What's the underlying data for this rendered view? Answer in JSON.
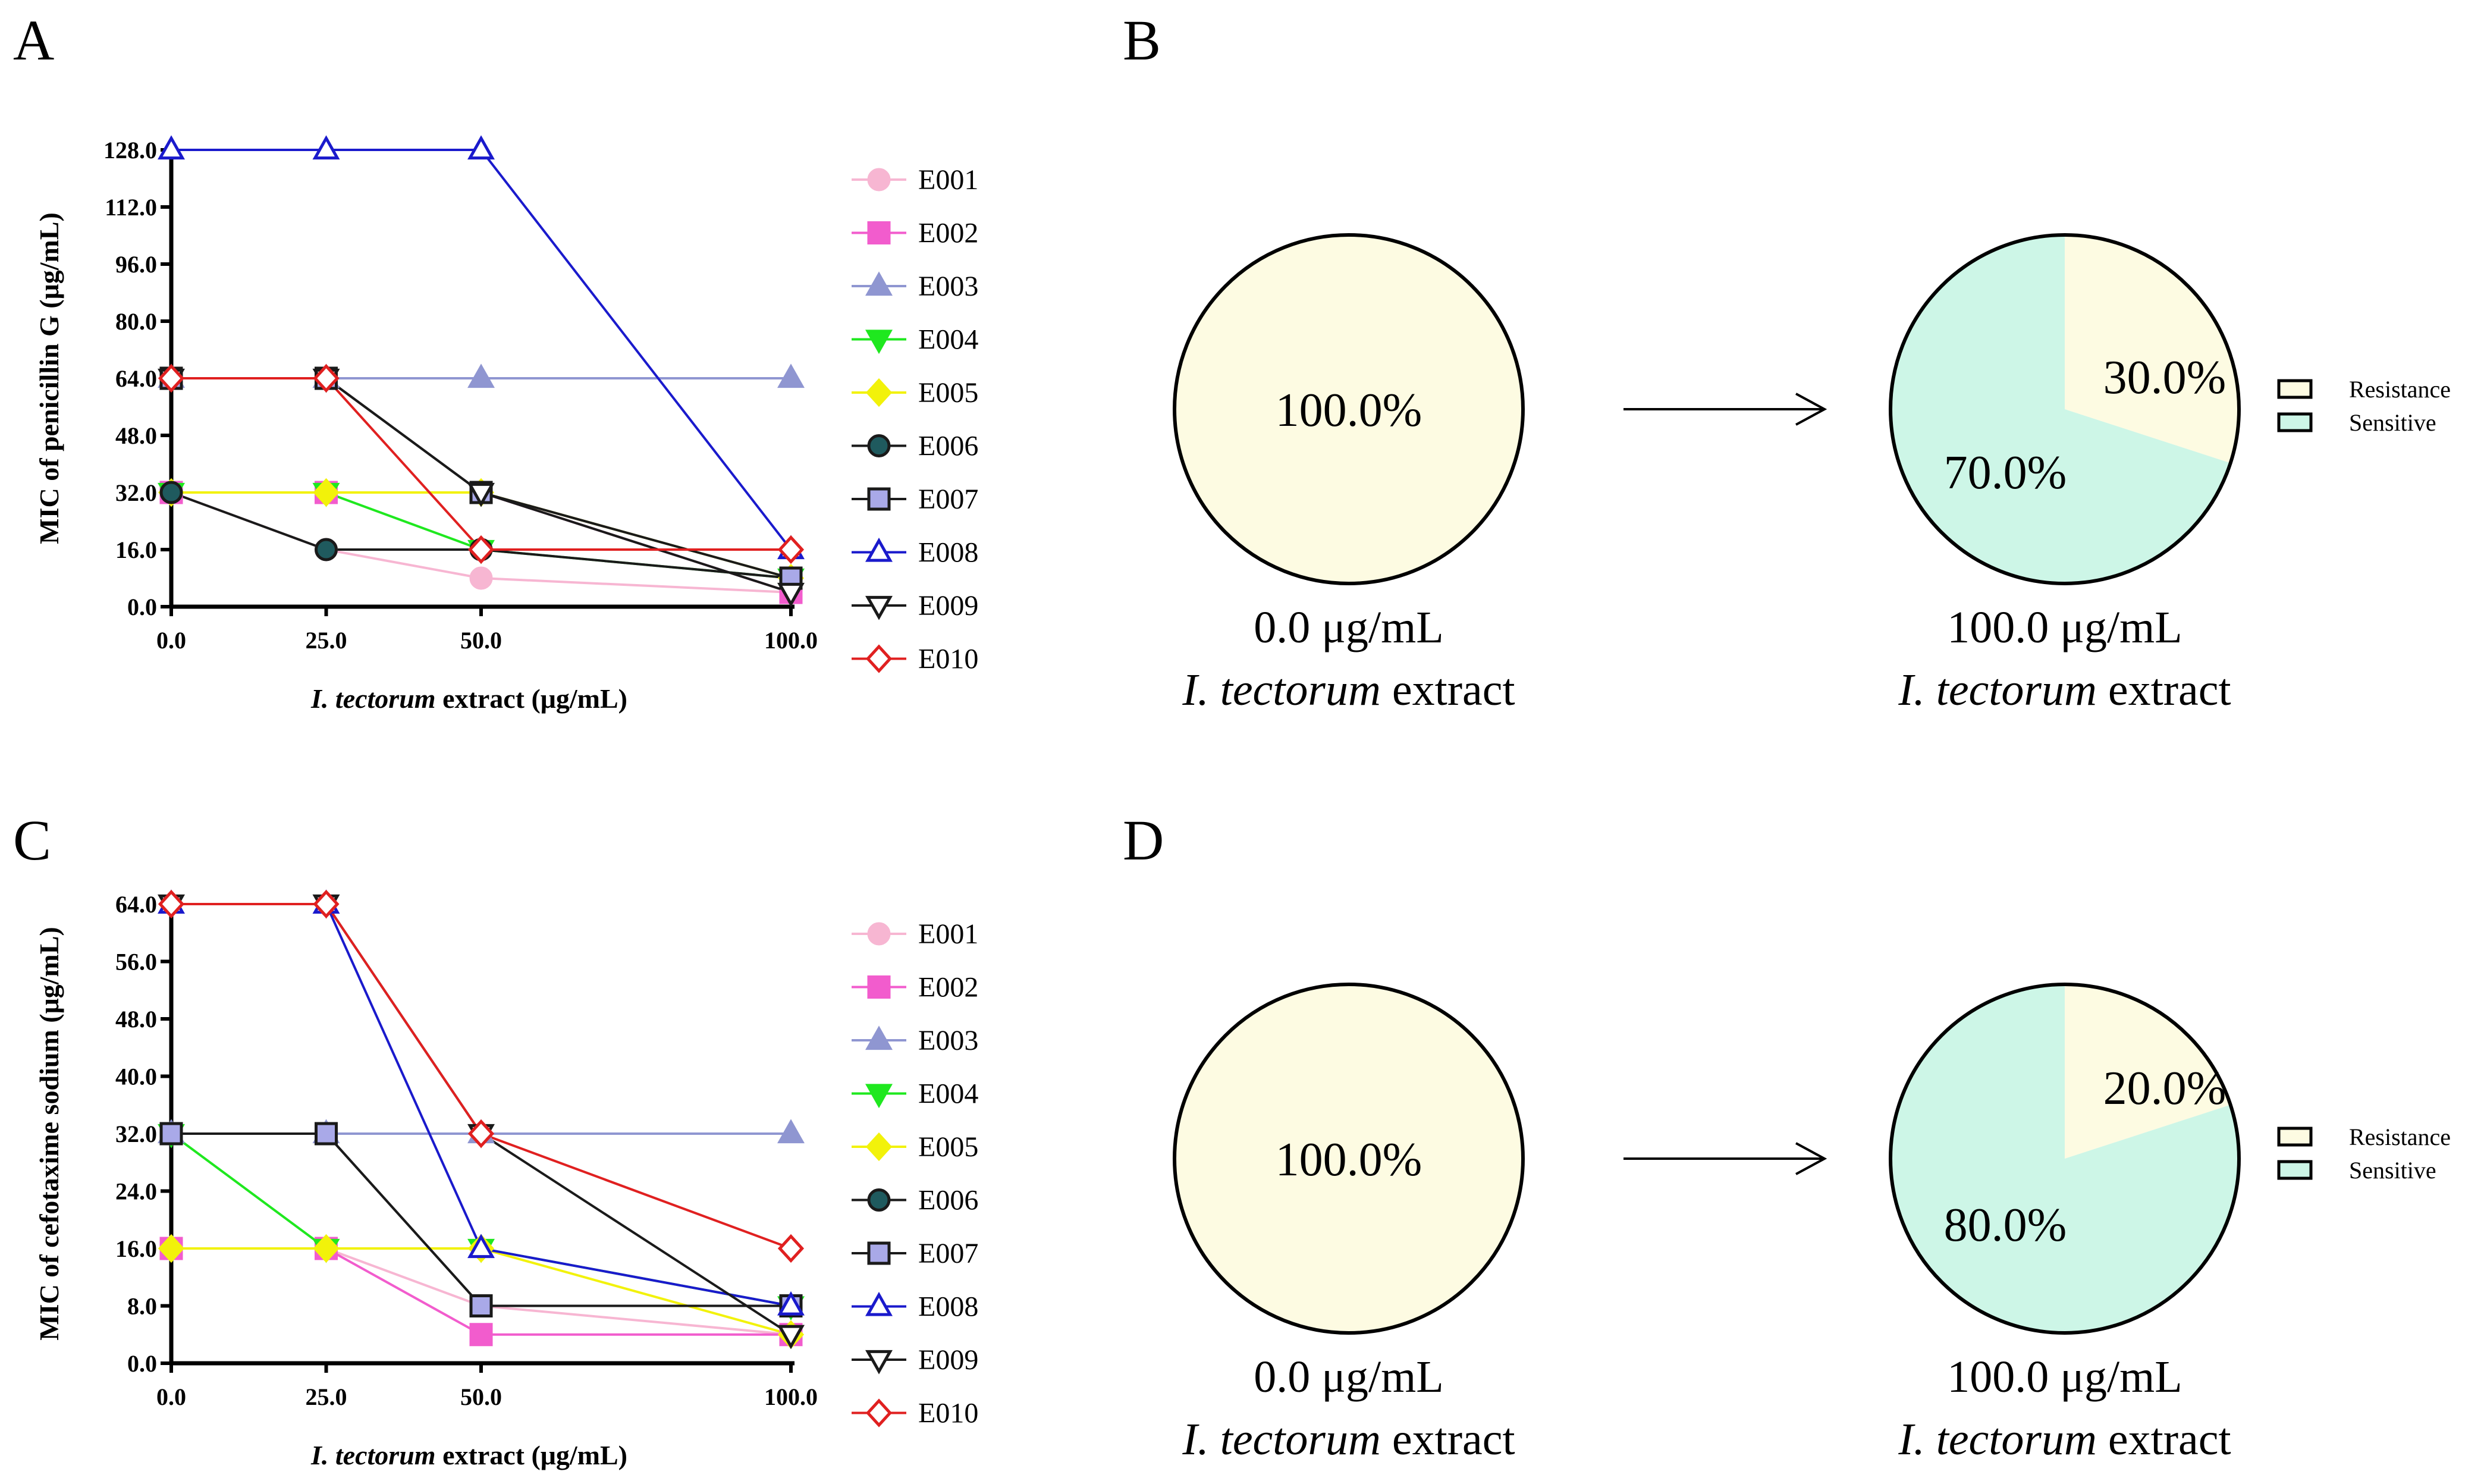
{
  "panels": [
    {
      "label": "A",
      "chart_data": {
        "type": "line",
        "xlabel_italic": "I. tectorum",
        "xlabel_rest": " extract (μg/mL)",
        "ylabel": "MIC of penicillin G (μg/mL)",
        "x": [
          0,
          25,
          50,
          100
        ],
        "x_tick_labels": [
          "0.0",
          "25.0",
          "50.0",
          "100.0"
        ],
        "ylim": [
          0,
          128
        ],
        "y_ticks": [
          0,
          16,
          32,
          48,
          64,
          80,
          96,
          112,
          128
        ],
        "y_tick_labels": [
          "0.0",
          "16.0",
          "32.0",
          "48.0",
          "64.0",
          "80.0",
          "96.0",
          "112.0",
          "128.0"
        ],
        "grid": false,
        "legend": "right",
        "series": [
          {
            "name": "E001",
            "values": [
              32,
              16,
              8,
              4
            ]
          },
          {
            "name": "E002",
            "values": [
              32,
              32,
              32,
              4
            ]
          },
          {
            "name": "E003",
            "values": [
              64,
              64,
              64,
              64
            ]
          },
          {
            "name": "E004",
            "values": [
              32,
              32,
              16,
              8
            ]
          },
          {
            "name": "E005",
            "values": [
              32,
              32,
              32,
              8
            ]
          },
          {
            "name": "E006",
            "values": [
              32,
              16,
              16,
              8
            ]
          },
          {
            "name": "E007",
            "values": [
              64,
              64,
              32,
              8
            ]
          },
          {
            "name": "E008",
            "values": [
              128,
              128,
              128,
              16
            ]
          },
          {
            "name": "E009",
            "values": [
              64,
              64,
              32,
              4
            ]
          },
          {
            "name": "E010",
            "values": [
              64,
              64,
              16,
              16
            ]
          }
        ]
      }
    },
    {
      "label": "C",
      "chart_data": {
        "type": "line",
        "xlabel_italic": "I. tectorum",
        "xlabel_rest": " extract (μg/mL)",
        "ylabel": "MIC of cefotaxime sodium (μg/mL)",
        "x": [
          0,
          25,
          50,
          100
        ],
        "x_tick_labels": [
          "0.0",
          "25.0",
          "50.0",
          "100.0"
        ],
        "ylim": [
          0,
          64
        ],
        "y_ticks": [
          0,
          8,
          16,
          24,
          32,
          40,
          48,
          56,
          64
        ],
        "y_tick_labels": [
          "0.0",
          "8.0",
          "16.0",
          "24.0",
          "32.0",
          "40.0",
          "48.0",
          "56.0",
          "64.0"
        ],
        "grid": false,
        "legend": "right",
        "series": [
          {
            "name": "E001",
            "values": [
              16,
              16,
              8,
              4
            ]
          },
          {
            "name": "E002",
            "values": [
              16,
              16,
              4,
              4
            ]
          },
          {
            "name": "E003",
            "values": [
              32,
              32,
              32,
              32
            ]
          },
          {
            "name": "E004",
            "values": [
              32,
              16,
              16,
              8
            ]
          },
          {
            "name": "E005",
            "values": [
              16,
              16,
              16,
              4
            ]
          },
          {
            "name": "E006",
            "values": [
              32,
              32,
              8,
              8
            ]
          },
          {
            "name": "E007",
            "values": [
              32,
              32,
              8,
              8
            ]
          },
          {
            "name": "E008",
            "values": [
              64,
              64,
              16,
              8
            ]
          },
          {
            "name": "E009",
            "values": [
              64,
              64,
              32,
              4
            ]
          },
          {
            "name": "E010",
            "values": [
              64,
              64,
              32,
              16
            ]
          }
        ]
      }
    },
    {
      "label": "B",
      "chart_data": {
        "type": "pie",
        "pies": [
          {
            "caption_value": "0.0 μg/mL",
            "caption_italic": "I. tectorum",
            "caption_rest": " extract",
            "slices": [
              {
                "name": "Resistance",
                "value": 100.0,
                "label": "100.0%"
              }
            ]
          },
          {
            "caption_value": "100.0 μg/mL",
            "caption_italic": "I. tectorum",
            "caption_rest": " extract",
            "slices": [
              {
                "name": "Resistance",
                "value": 30.0,
                "label": "30.0%"
              },
              {
                "name": "Sensitive",
                "value": 70.0,
                "label": "70.0%"
              }
            ]
          }
        ],
        "legend": [
          "Resistance",
          "Sensitive"
        ]
      }
    },
    {
      "label": "D",
      "chart_data": {
        "type": "pie",
        "pies": [
          {
            "caption_value": "0.0 μg/mL",
            "caption_italic": "I. tectorum",
            "caption_rest": " extract",
            "slices": [
              {
                "name": "Resistance",
                "value": 100.0,
                "label": "100.0%"
              }
            ]
          },
          {
            "caption_value": "100.0 μg/mL",
            "caption_italic": "I. tectorum",
            "caption_rest": " extract",
            "slices": [
              {
                "name": "Resistance",
                "value": 20.0,
                "label": "20.0%"
              },
              {
                "name": "Sensitive",
                "value": 80.0,
                "label": "80.0%"
              }
            ]
          }
        ],
        "legend": [
          "Resistance",
          "Sensitive"
        ]
      }
    }
  ],
  "series_styles": {
    "E001": {
      "color": "#f7b6d2",
      "marker": "circle",
      "fill": "#f7b6d2"
    },
    "E002": {
      "color": "#f25ccd",
      "marker": "square",
      "fill": "#f25ccd"
    },
    "E003": {
      "color": "#8f96d1",
      "marker": "triangle",
      "fill": "#8f96d1"
    },
    "E004": {
      "color": "#1fe81f",
      "marker": "triangle-down",
      "fill": "#1fe81f"
    },
    "E005": {
      "color": "#f2f20a",
      "marker": "diamond",
      "fill": "#f2f20a"
    },
    "E006": {
      "color": "#1a1a1a",
      "marker": "circle",
      "fill": "#1f5a5e"
    },
    "E007": {
      "color": "#1a1a1a",
      "marker": "square",
      "fill": "#a9a9e8"
    },
    "E008": {
      "color": "#1a1acc",
      "marker": "triangle",
      "fill": "#ffffff"
    },
    "E009": {
      "color": "#1a1a1a",
      "marker": "triangle-down",
      "fill": "#ffffff"
    },
    "E010": {
      "color": "#e02020",
      "marker": "diamond",
      "fill": "#ffffff"
    }
  },
  "colors": {
    "resistance": "#fdfbe2",
    "sensitive": "#cdf6e7",
    "outline": "#000000"
  }
}
